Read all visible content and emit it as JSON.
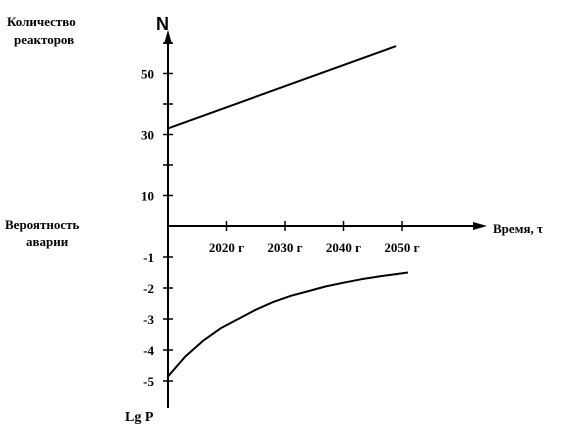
{
  "chart_data": {
    "type": "line",
    "upper_axis": {
      "title_lines": [
        "Количество",
        "реакторов"
      ],
      "symbol": "N",
      "tick_labels": [
        "50",
        "30",
        "10"
      ],
      "ticks": [
        60,
        50,
        40,
        30,
        20,
        10
      ]
    },
    "lower_axis": {
      "title_lines": [
        "Вероятность",
        "аварии"
      ],
      "symbol": "Lg P",
      "tick_labels": [
        "-1",
        "-2",
        "-3",
        "-4",
        "-5"
      ],
      "ticks": [
        -1,
        -2,
        -3,
        -4,
        -5
      ]
    },
    "x_axis": {
      "label": "Время, τ",
      "tick_labels": [
        "2020 г",
        "2030 г",
        "2040 г",
        "2050 г"
      ],
      "ticks": [
        2020,
        2030,
        2040,
        2050
      ],
      "range": [
        2010,
        2062
      ]
    },
    "series": [
      {
        "axis": "upper",
        "points": [
          [
            2010,
            32
          ],
          [
            2049,
            59
          ]
        ]
      },
      {
        "axis": "lower",
        "points": [
          [
            2010,
            -4.85
          ],
          [
            2013,
            -4.2
          ],
          [
            2016,
            -3.7
          ],
          [
            2019,
            -3.3
          ],
          [
            2022,
            -3.0
          ],
          [
            2025,
            -2.7
          ],
          [
            2028,
            -2.45
          ],
          [
            2031,
            -2.25
          ],
          [
            2034,
            -2.1
          ],
          [
            2037,
            -1.95
          ],
          [
            2040,
            -1.83
          ],
          [
            2043,
            -1.72
          ],
          [
            2046,
            -1.63
          ],
          [
            2049,
            -1.55
          ],
          [
            2051,
            -1.5
          ]
        ]
      }
    ]
  }
}
